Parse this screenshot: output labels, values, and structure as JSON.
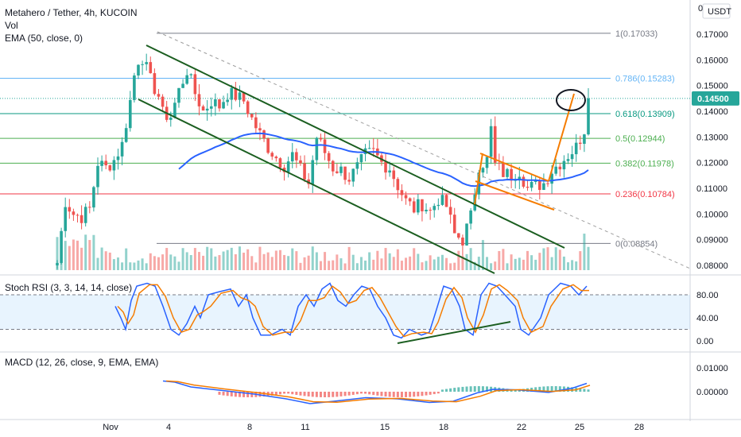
{
  "header": {
    "title": "Metahero / Tether, 4h, KUCOIN",
    "vol_label": "Vol",
    "ema_label": "EMA (50, close, 0)",
    "currency": "USDT"
  },
  "price_axis": {
    "ticks": [
      "0.17000",
      "0.16000",
      "0.15000",
      "0.14000",
      "0.13000",
      "0.12000",
      "0.11000",
      "0.10000",
      "0.09000",
      "0.08000"
    ],
    "last_price": "0.14500",
    "top_partial": "0"
  },
  "fib_levels": [
    {
      "label": "1(0.17033)",
      "value": 0.17033,
      "color": "#787b86"
    },
    {
      "label": "0.786(0.15283)",
      "value": 0.15283,
      "color": "#64b5f6"
    },
    {
      "label": "0.618(0.13909)",
      "value": 0.13909,
      "color": "#089981"
    },
    {
      "label": "0.5(0.12944)",
      "value": 0.12944,
      "color": "#4caf50"
    },
    {
      "label": "0.382(0.11978)",
      "value": 0.11978,
      "color": "#4caf50"
    },
    {
      "label": "0.236(0.10784)",
      "value": 0.10784,
      "color": "#f23645"
    },
    {
      "label": "0(0.08854)",
      "value": 0.08854,
      "color": "#787b86"
    }
  ],
  "stoch": {
    "label": "Stoch RSI (3, 3, 14, 14, close)",
    "ticks": [
      "80.00",
      "40.00",
      "0.00"
    ]
  },
  "macd": {
    "label": "MACD (12, 26, close, 9, EMA, EMA)",
    "ticks": [
      "0.01000",
      "0.00000"
    ]
  },
  "time_axis": {
    "labels": [
      "Nov",
      "4",
      "8",
      "11",
      "15",
      "18",
      "22",
      "25",
      "28"
    ]
  },
  "colors": {
    "up": "#26a69a",
    "down": "#ef5350",
    "ema": "#2962ff",
    "channel": "#1b5e20",
    "orange": "#f57c00"
  },
  "chart_data": {
    "type": "candlestick",
    "title": "Metahero / Tether, 4h, KUCOIN",
    "ylim": [
      0.077,
      0.18
    ],
    "x_labels": [
      "Nov",
      "4",
      "8",
      "11",
      "15",
      "18",
      "22",
      "25",
      "28"
    ],
    "close_path": [
      [
        0,
        0.081
      ],
      [
        2,
        0.105
      ],
      [
        4,
        0.1
      ],
      [
        6,
        0.099
      ],
      [
        8,
        0.102
      ],
      [
        10,
        0.12
      ],
      [
        12,
        0.118
      ],
      [
        14,
        0.121
      ],
      [
        16,
        0.127
      ],
      [
        18,
        0.144
      ],
      [
        19,
        0.154
      ],
      [
        20,
        0.16
      ],
      [
        21,
        0.161
      ],
      [
        23,
        0.152
      ],
      [
        25,
        0.146
      ],
      [
        26,
        0.139
      ],
      [
        28,
        0.138
      ],
      [
        30,
        0.148
      ],
      [
        32,
        0.156
      ],
      [
        34,
        0.147
      ],
      [
        36,
        0.14
      ],
      [
        38,
        0.144
      ],
      [
        40,
        0.142
      ],
      [
        42,
        0.147
      ],
      [
        44,
        0.146
      ],
      [
        46,
        0.144
      ],
      [
        48,
        0.137
      ],
      [
        50,
        0.131
      ],
      [
        52,
        0.126
      ],
      [
        54,
        0.122
      ],
      [
        56,
        0.119
      ],
      [
        58,
        0.123
      ],
      [
        60,
        0.117
      ],
      [
        62,
        0.112
      ],
      [
        64,
        0.13
      ],
      [
        66,
        0.124
      ],
      [
        68,
        0.118
      ],
      [
        70,
        0.117
      ],
      [
        72,
        0.114
      ],
      [
        74,
        0.118
      ],
      [
        76,
        0.123
      ],
      [
        78,
        0.124
      ],
      [
        80,
        0.12
      ],
      [
        82,
        0.118
      ],
      [
        84,
        0.111
      ],
      [
        86,
        0.105
      ],
      [
        88,
        0.102
      ],
      [
        90,
        0.104
      ],
      [
        92,
        0.101
      ],
      [
        94,
        0.106
      ],
      [
        96,
        0.103
      ],
      [
        98,
        0.092
      ],
      [
        100,
        0.09
      ],
      [
        102,
        0.099
      ],
      [
        104,
        0.119
      ],
      [
        106,
        0.121
      ],
      [
        107,
        0.133
      ],
      [
        108,
        0.119
      ],
      [
        110,
        0.116
      ],
      [
        112,
        0.115
      ],
      [
        114,
        0.117
      ],
      [
        116,
        0.11
      ],
      [
        118,
        0.111
      ],
      [
        120,
        0.112
      ],
      [
        122,
        0.117
      ],
      [
        124,
        0.12
      ],
      [
        126,
        0.123
      ],
      [
        128,
        0.126
      ],
      [
        130,
        0.133
      ],
      [
        131,
        0.145
      ]
    ],
    "fib": [
      0.17033,
      0.15283,
      0.13909,
      0.12944,
      0.11978,
      0.10784,
      0.08854
    ],
    "last_price": 0.145
  }
}
